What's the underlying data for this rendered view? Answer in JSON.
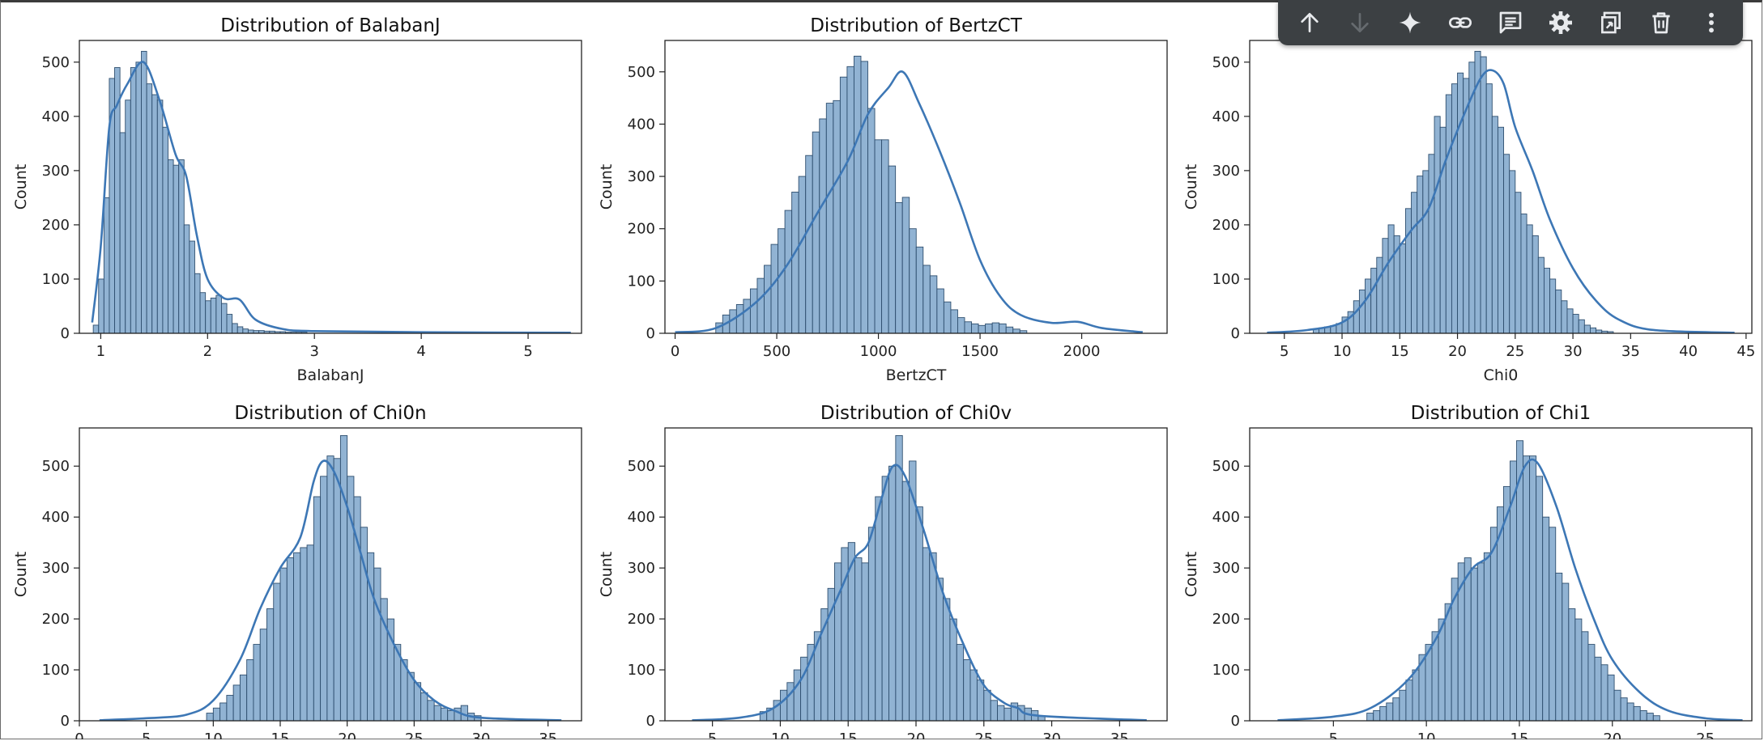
{
  "toolbar": {
    "buttons": [
      {
        "name": "move-up",
        "icon": "arrow-up-icon",
        "enabled": true
      },
      {
        "name": "move-down",
        "icon": "arrow-down-icon",
        "enabled": false
      },
      {
        "name": "gemini",
        "icon": "sparkle-icon",
        "enabled": true
      },
      {
        "name": "link",
        "icon": "link-icon",
        "enabled": true
      },
      {
        "name": "comment",
        "icon": "comment-icon",
        "enabled": true
      },
      {
        "name": "settings",
        "icon": "gear-icon",
        "enabled": true
      },
      {
        "name": "mirror",
        "icon": "mirror-cell-icon",
        "enabled": true
      },
      {
        "name": "delete",
        "icon": "trash-icon",
        "enabled": true
      },
      {
        "name": "more",
        "icon": "more-vert-icon",
        "enabled": true
      }
    ]
  },
  "colors": {
    "bar": "#7ea6cb",
    "bar_edge": "#2f4f6f",
    "kde": "#3d77b5",
    "toolbar_bg": "#3c4043"
  },
  "chart_data": [
    {
      "type": "bar",
      "title": "Distribution of BalabanJ",
      "xlabel": "BalabanJ",
      "ylabel": "Count",
      "xlim": [
        0.8,
        5.5
      ],
      "ylim": [
        0,
        540
      ],
      "xticks": [
        1,
        2,
        3,
        4,
        5
      ],
      "yticks": [
        0,
        100,
        200,
        300,
        400,
        500
      ],
      "bin_start": 0.93,
      "bin_width": 0.05,
      "values": [
        15,
        100,
        250,
        470,
        490,
        370,
        430,
        490,
        500,
        520,
        460,
        440,
        430,
        380,
        320,
        310,
        320,
        200,
        170,
        110,
        75,
        60,
        65,
        70,
        55,
        35,
        18,
        12,
        8,
        6,
        5,
        5,
        4,
        4,
        3,
        3,
        2,
        2,
        2,
        2
      ],
      "kde": [
        [
          0.92,
          20
        ],
        [
          1.0,
          160
        ],
        [
          1.08,
          380
        ],
        [
          1.15,
          420
        ],
        [
          1.25,
          460
        ],
        [
          1.4,
          500
        ],
        [
          1.55,
          430
        ],
        [
          1.7,
          330
        ],
        [
          1.8,
          290
        ],
        [
          1.9,
          180
        ],
        [
          2.0,
          100
        ],
        [
          2.15,
          65
        ],
        [
          2.3,
          62
        ],
        [
          2.45,
          25
        ],
        [
          2.7,
          8
        ],
        [
          3.0,
          4
        ],
        [
          4.0,
          2
        ],
        [
          5.4,
          1
        ]
      ]
    },
    {
      "type": "bar",
      "title": "Distribution of BertzCT",
      "xlabel": "BertzCT",
      "ylabel": "Count",
      "xlim": [
        -50,
        2420
      ],
      "ylim": [
        0,
        560
      ],
      "xticks": [
        0,
        500,
        1000,
        1500,
        2000
      ],
      "yticks": [
        0,
        100,
        200,
        300,
        400,
        500
      ],
      "bin_start": 200,
      "bin_width": 34,
      "values": [
        20,
        35,
        45,
        55,
        65,
        85,
        105,
        130,
        170,
        200,
        235,
        270,
        300,
        340,
        385,
        410,
        440,
        445,
        490,
        510,
        530,
        520,
        430,
        370,
        370,
        320,
        250,
        260,
        200,
        165,
        130,
        110,
        85,
        60,
        45,
        30,
        22,
        18,
        15,
        18,
        20,
        18,
        12,
        8,
        5
      ],
      "kde": [
        [
          0,
          2
        ],
        [
          200,
          10
        ],
        [
          400,
          60
        ],
        [
          550,
          130
        ],
        [
          700,
          230
        ],
        [
          850,
          330
        ],
        [
          950,
          420
        ],
        [
          1050,
          470
        ],
        [
          1120,
          500
        ],
        [
          1200,
          440
        ],
        [
          1300,
          350
        ],
        [
          1400,
          250
        ],
        [
          1500,
          140
        ],
        [
          1600,
          70
        ],
        [
          1700,
          35
        ],
        [
          1850,
          20
        ],
        [
          1980,
          22
        ],
        [
          2100,
          10
        ],
        [
          2300,
          2
        ]
      ]
    },
    {
      "type": "bar",
      "title": "",
      "xlabel": "Chi0",
      "ylabel": "Count",
      "xlim": [
        2,
        45.5
      ],
      "ylim": [
        0,
        540
      ],
      "xticks": [
        5,
        10,
        15,
        20,
        25,
        30,
        35,
        40,
        45
      ],
      "yticks": [
        0,
        100,
        200,
        300,
        400,
        500
      ],
      "bin_start": 7.5,
      "bin_width": 0.5,
      "values": [
        8,
        10,
        12,
        14,
        18,
        30,
        40,
        60,
        80,
        100,
        120,
        140,
        175,
        200,
        180,
        165,
        230,
        260,
        290,
        300,
        330,
        400,
        380,
        440,
        460,
        480,
        470,
        500,
        520,
        510,
        460,
        400,
        380,
        330,
        300,
        260,
        220,
        200,
        180,
        140,
        120,
        100,
        80,
        60,
        45,
        35,
        25,
        15,
        10,
        6,
        4,
        3
      ],
      "kde": [
        [
          3.5,
          1
        ],
        [
          7,
          6
        ],
        [
          10,
          20
        ],
        [
          12,
          60
        ],
        [
          14,
          130
        ],
        [
          16,
          190
        ],
        [
          17.5,
          230
        ],
        [
          19,
          320
        ],
        [
          20.5,
          400
        ],
        [
          22,
          470
        ],
        [
          23,
          485
        ],
        [
          24,
          460
        ],
        [
          25,
          380
        ],
        [
          26.5,
          300
        ],
        [
          28,
          210
        ],
        [
          30,
          120
        ],
        [
          32,
          60
        ],
        [
          34,
          25
        ],
        [
          37,
          6
        ],
        [
          44,
          1
        ]
      ]
    },
    {
      "type": "bar",
      "title": "Distribution of Chi0n",
      "xlabel": "",
      "ylabel": "Count",
      "xlim": [
        0,
        37.5
      ],
      "ylim": [
        0,
        575
      ],
      "xticks": [
        0,
        5,
        10,
        15,
        20,
        25,
        30,
        35
      ],
      "yticks": [
        0,
        100,
        200,
        300,
        400,
        500
      ],
      "bin_start": 9.5,
      "bin_width": 0.5,
      "values": [
        15,
        25,
        35,
        50,
        70,
        90,
        120,
        150,
        180,
        220,
        270,
        300,
        320,
        330,
        340,
        345,
        440,
        480,
        520,
        515,
        560,
        480,
        440,
        380,
        330,
        300,
        240,
        200,
        150,
        120,
        95,
        75,
        55,
        40,
        30,
        25,
        20,
        25,
        30,
        15,
        10
      ],
      "kde": [
        [
          1.5,
          1
        ],
        [
          5,
          5
        ],
        [
          8,
          12
        ],
        [
          10,
          40
        ],
        [
          12,
          120
        ],
        [
          13.5,
          220
        ],
        [
          15,
          300
        ],
        [
          16.5,
          360
        ],
        [
          17.5,
          470
        ],
        [
          18.2,
          510
        ],
        [
          19,
          490
        ],
        [
          20,
          420
        ],
        [
          21,
          330
        ],
        [
          22,
          240
        ],
        [
          23.5,
          150
        ],
        [
          25,
          80
        ],
        [
          26.5,
          40
        ],
        [
          28,
          20
        ],
        [
          30,
          6
        ],
        [
          36,
          1
        ]
      ]
    },
    {
      "type": "bar",
      "title": "Distribution of Chi0v",
      "xlabel": "",
      "ylabel": "Count",
      "xlim": [
        1.5,
        38.5
      ],
      "ylim": [
        0,
        575
      ],
      "xticks": [
        5,
        10,
        15,
        20,
        25,
        30,
        35
      ],
      "yticks": [
        0,
        100,
        200,
        300,
        400,
        500
      ],
      "bin_start": 8.5,
      "bin_width": 0.5,
      "values": [
        18,
        25,
        40,
        60,
        75,
        100,
        125,
        150,
        175,
        220,
        260,
        310,
        340,
        350,
        320,
        310,
        380,
        440,
        480,
        500,
        560,
        470,
        510,
        420,
        340,
        330,
        280,
        240,
        200,
        150,
        120,
        100,
        80,
        60,
        40,
        30,
        25,
        35,
        30,
        25,
        20,
        10
      ],
      "kde": [
        [
          3.5,
          1
        ],
        [
          7,
          6
        ],
        [
          9.5,
          25
        ],
        [
          11.5,
          80
        ],
        [
          13,
          170
        ],
        [
          14.5,
          260
        ],
        [
          15.5,
          320
        ],
        [
          16.5,
          350
        ],
        [
          17.5,
          440
        ],
        [
          18.3,
          500
        ],
        [
          19.2,
          480
        ],
        [
          20.5,
          380
        ],
        [
          22,
          250
        ],
        [
          23.5,
          150
        ],
        [
          25,
          70
        ],
        [
          26.5,
          35
        ],
        [
          27.5,
          25
        ],
        [
          29,
          10
        ],
        [
          37,
          1
        ]
      ]
    },
    {
      "type": "bar",
      "title": "Distribution of Chi1",
      "xlabel": "",
      "ylabel": "Count",
      "xlim": [
        0.5,
        27.5
      ],
      "ylim": [
        0,
        575
      ],
      "xticks": [
        5,
        10,
        15,
        20,
        25
      ],
      "yticks": [
        0,
        100,
        200,
        300,
        400,
        500
      ],
      "bin_start": 6.8,
      "bin_width": 0.35,
      "values": [
        15,
        20,
        28,
        35,
        45,
        60,
        80,
        100,
        130,
        150,
        175,
        200,
        230,
        280,
        310,
        320,
        300,
        310,
        330,
        380,
        420,
        460,
        510,
        550,
        520,
        520,
        480,
        400,
        380,
        290,
        270,
        220,
        200,
        175,
        150,
        125,
        110,
        90,
        60,
        45,
        35,
        28,
        20,
        15,
        10
      ],
      "kde": [
        [
          2,
          1
        ],
        [
          5,
          8
        ],
        [
          7,
          25
        ],
        [
          9,
          80
        ],
        [
          10.5,
          160
        ],
        [
          11.5,
          240
        ],
        [
          12.5,
          300
        ],
        [
          13.5,
          330
        ],
        [
          14.5,
          420
        ],
        [
          15.3,
          500
        ],
        [
          16,
          505
        ],
        [
          17,
          420
        ],
        [
          18,
          300
        ],
        [
          19,
          200
        ],
        [
          20,
          120
        ],
        [
          21.5,
          55
        ],
        [
          23,
          20
        ],
        [
          25,
          5
        ],
        [
          27,
          1
        ]
      ]
    }
  ]
}
